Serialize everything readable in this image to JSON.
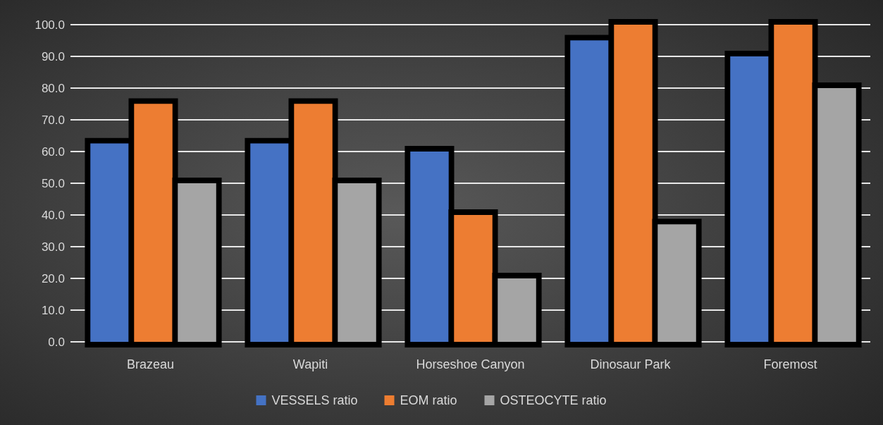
{
  "chart_data": {
    "type": "bar",
    "categories": [
      "Brazeau",
      "Wapiti",
      "Horseshoe Canyon",
      "Dinosaur Park",
      "Foremost"
    ],
    "series": [
      {
        "name": "VESSELS ratio",
        "color": "#4472c4",
        "values": [
          62.5,
          62.5,
          60,
          95,
          90
        ]
      },
      {
        "name": "EOM ratio",
        "color": "#ed7d31",
        "values": [
          75,
          75,
          40,
          100,
          100
        ]
      },
      {
        "name": "OSTEOCYTE ratio",
        "color": "#a5a5a5",
        "values": [
          50,
          50,
          20,
          37,
          80
        ]
      }
    ],
    "ylim": [
      0,
      100
    ],
    "yticks": [
      {
        "value": 0,
        "label": "0.0"
      },
      {
        "value": 10,
        "label": "10.0"
      },
      {
        "value": 20,
        "label": "20.0"
      },
      {
        "value": 30,
        "label": "30.0"
      },
      {
        "value": 40,
        "label": "40.0"
      },
      {
        "value": 50,
        "label": "50.0"
      },
      {
        "value": 60,
        "label": "60.0"
      },
      {
        "value": 70,
        "label": "70.0"
      },
      {
        "value": 80,
        "label": "80.0"
      },
      {
        "value": 90,
        "label": "90.0"
      },
      {
        "value": 100,
        "label": "100.0"
      }
    ],
    "grid": "y",
    "legend": "bottom"
  }
}
